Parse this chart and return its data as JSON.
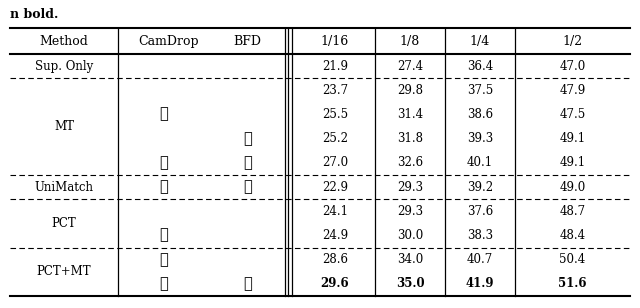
{
  "header": [
    "Method",
    "CamDrop",
    "BFD",
    "1/16",
    "1/8",
    "1/4",
    "1/2"
  ],
  "rows": [
    {
      "method_group": "Sup. Only",
      "camdrop": false,
      "bfd": false,
      "v1": "21.9",
      "v2": "27.4",
      "v3": "36.4",
      "v4": "47.0",
      "bold": false
    },
    {
      "method_group": "",
      "camdrop": false,
      "bfd": false,
      "v1": "23.7",
      "v2": "29.8",
      "v3": "37.5",
      "v4": "47.9",
      "bold": false
    },
    {
      "method_group": "",
      "camdrop": true,
      "bfd": false,
      "v1": "25.5",
      "v2": "31.4",
      "v3": "38.6",
      "v4": "47.5",
      "bold": false
    },
    {
      "method_group": "",
      "camdrop": false,
      "bfd": true,
      "v1": "25.2",
      "v2": "31.8",
      "v3": "39.3",
      "v4": "49.1",
      "bold": false
    },
    {
      "method_group": "",
      "camdrop": true,
      "bfd": true,
      "v1": "27.0",
      "v2": "32.6",
      "v3": "40.1",
      "v4": "49.1",
      "bold": false
    },
    {
      "method_group": "UniMatch",
      "camdrop": true,
      "bfd": true,
      "v1": "22.9",
      "v2": "29.3",
      "v3": "39.2",
      "v4": "49.0",
      "bold": false
    },
    {
      "method_group": "",
      "camdrop": false,
      "bfd": false,
      "v1": "24.1",
      "v2": "29.3",
      "v3": "37.6",
      "v4": "48.7",
      "bold": false
    },
    {
      "method_group": "",
      "camdrop": true,
      "bfd": false,
      "v1": "24.9",
      "v2": "30.0",
      "v3": "38.3",
      "v4": "48.4",
      "bold": false
    },
    {
      "method_group": "",
      "camdrop": true,
      "bfd": false,
      "v1": "28.6",
      "v2": "34.0",
      "v3": "40.7",
      "v4": "50.4",
      "bold": false
    },
    {
      "method_group": "",
      "camdrop": true,
      "bfd": true,
      "v1": "29.6",
      "v2": "35.0",
      "v3": "41.9",
      "v4": "51.6",
      "bold": true
    }
  ],
  "method_spans": [
    {
      "label": "Sup. Only",
      "start": 0,
      "end": 0
    },
    {
      "label": "MT",
      "start": 1,
      "end": 4
    },
    {
      "label": "UniMatch",
      "start": 5,
      "end": 5
    },
    {
      "label": "PCT",
      "start": 6,
      "end": 7
    },
    {
      "label": "PCT+MT",
      "start": 8,
      "end": 9
    }
  ],
  "dashed_after_rows": [
    0,
    4,
    5,
    7
  ],
  "bg_color": "#ffffff",
  "text_color": "#000000",
  "font_size": 8.5,
  "header_font_size": 9.0
}
